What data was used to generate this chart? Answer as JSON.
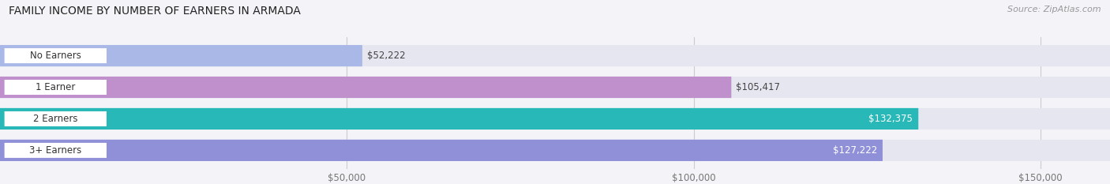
{
  "title": "FAMILY INCOME BY NUMBER OF EARNERS IN ARMADA",
  "source": "Source: ZipAtlas.com",
  "categories": [
    "No Earners",
    "1 Earner",
    "2 Earners",
    "3+ Earners"
  ],
  "values": [
    52222,
    105417,
    132375,
    127222
  ],
  "labels": [
    "$52,222",
    "$105,417",
    "$132,375",
    "$127,222"
  ],
  "bar_colors": [
    "#aab8e8",
    "#c090cc",
    "#28b8b8",
    "#9090d8"
  ],
  "bar_bg_color": "#e6e6f0",
  "label_colors": [
    "#555555",
    "#555555",
    "#ffffff",
    "#ffffff"
  ],
  "xlim_max": 160000,
  "bar_max": 160000,
  "xticks": [
    50000,
    100000,
    150000
  ],
  "xticklabels": [
    "$50,000",
    "$100,000",
    "$150,000"
  ],
  "title_fontsize": 10,
  "source_fontsize": 8,
  "tick_fontsize": 8.5,
  "bar_label_fontsize": 8.5,
  "cat_label_fontsize": 8.5,
  "background_color": "#f4f4f8",
  "bar_height": 0.68,
  "figsize": [
    14.06,
    2.33
  ],
  "dpi": 100
}
